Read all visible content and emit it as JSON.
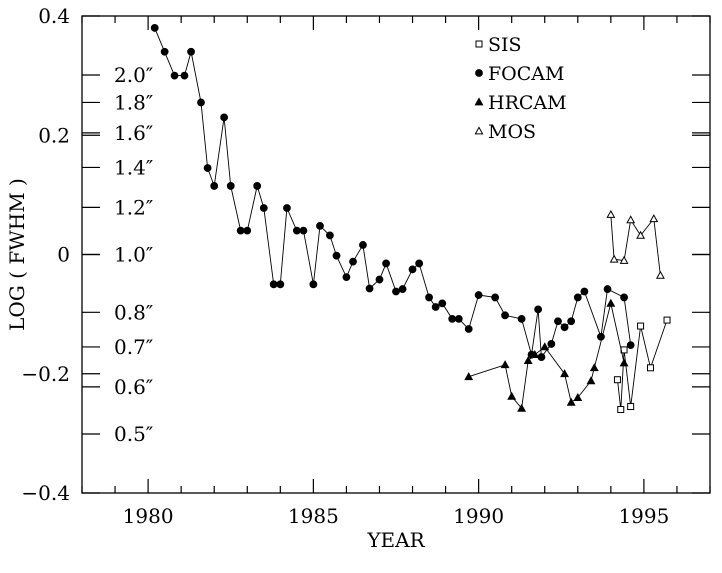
{
  "chart_data": {
    "type": "scatter",
    "xlabel": "YEAR",
    "ylabel": "LOG ( FWHM )",
    "xlim": [
      1978,
      1997
    ],
    "ylim": [
      -0.4,
      0.4
    ],
    "x_ticks": [
      1980,
      1985,
      1990,
      1995
    ],
    "y_ticks": [
      {
        "value": 0.4,
        "label": "0.4"
      },
      {
        "value": 0.2,
        "label": "0.2"
      },
      {
        "value": 0.0,
        "label": "0"
      },
      {
        "value": -0.2,
        "label": "−0.2"
      },
      {
        "value": -0.4,
        "label": "−0.4"
      }
    ],
    "fwhm_labels": [
      {
        "value": 0.301,
        "label": "2.0″"
      },
      {
        "value": 0.255,
        "label": "1.8″"
      },
      {
        "value": 0.204,
        "label": "1.6″"
      },
      {
        "value": 0.146,
        "label": "1.4″"
      },
      {
        "value": 0.079,
        "label": "1.2″"
      },
      {
        "value": 0.0,
        "label": "1.0″"
      },
      {
        "value": -0.097,
        "label": "0.8″"
      },
      {
        "value": -0.155,
        "label": "0.7″"
      },
      {
        "value": -0.222,
        "label": "0.6″"
      },
      {
        "value": -0.301,
        "label": "0.5″"
      }
    ],
    "grid": false,
    "legend_position": "top-right",
    "series": [
      {
        "name": "SIS",
        "marker": "square",
        "points": [
          [
            1994.2,
            -0.21
          ],
          [
            1994.3,
            -0.26
          ],
          [
            1994.4,
            -0.16
          ],
          [
            1994.6,
            -0.255
          ],
          [
            1994.9,
            -0.12
          ],
          [
            1995.2,
            -0.19
          ],
          [
            1995.7,
            -0.11
          ]
        ]
      },
      {
        "name": "FOCAM",
        "marker": "filled-circle",
        "points": [
          [
            1980.2,
            0.38
          ],
          [
            1980.5,
            0.34
          ],
          [
            1980.8,
            0.3
          ],
          [
            1981.1,
            0.3
          ],
          [
            1981.3,
            0.34
          ],
          [
            1981.6,
            0.255
          ],
          [
            1981.8,
            0.145
          ],
          [
            1982.0,
            0.115
          ],
          [
            1982.3,
            0.23
          ],
          [
            1982.5,
            0.115
          ],
          [
            1982.8,
            0.04
          ],
          [
            1983.0,
            0.04
          ],
          [
            1983.3,
            0.115
          ],
          [
            1983.5,
            0.078
          ],
          [
            1983.8,
            -0.05
          ],
          [
            1984.0,
            -0.05
          ],
          [
            1984.2,
            0.078
          ],
          [
            1984.5,
            0.04
          ],
          [
            1984.7,
            0.04
          ],
          [
            1985.0,
            -0.05
          ],
          [
            1985.2,
            0.048
          ],
          [
            1985.5,
            0.032
          ],
          [
            1985.7,
            -0.002
          ],
          [
            1986.0,
            -0.038
          ],
          [
            1986.2,
            -0.012
          ],
          [
            1986.5,
            0.016
          ],
          [
            1986.7,
            -0.057
          ],
          [
            1987.0,
            -0.042
          ],
          [
            1987.2,
            -0.015
          ],
          [
            1987.5,
            -0.062
          ],
          [
            1987.7,
            -0.058
          ],
          [
            1988.0,
            -0.025
          ],
          [
            1988.2,
            -0.015
          ],
          [
            1988.5,
            -0.072
          ],
          [
            1988.7,
            -0.088
          ],
          [
            1988.9,
            -0.082
          ],
          [
            1989.2,
            -0.108
          ],
          [
            1989.4,
            -0.108
          ],
          [
            1989.7,
            -0.125
          ],
          [
            1990.0,
            -0.068
          ],
          [
            1990.5,
            -0.072
          ],
          [
            1990.8,
            -0.102
          ],
          [
            1991.3,
            -0.108
          ],
          [
            1991.6,
            -0.168
          ],
          [
            1991.8,
            -0.092
          ],
          [
            1991.9,
            -0.172
          ],
          [
            1992.2,
            -0.15
          ],
          [
            1992.4,
            -0.112
          ],
          [
            1992.6,
            -0.122
          ],
          [
            1992.8,
            -0.112
          ],
          [
            1993.0,
            -0.072
          ],
          [
            1993.2,
            -0.062
          ],
          [
            1993.7,
            -0.138
          ],
          [
            1993.9,
            -0.058
          ],
          [
            1994.4,
            -0.072
          ],
          [
            1994.6,
            -0.152
          ]
        ]
      },
      {
        "name": "HRCAM",
        "marker": "filled-triangle",
        "points": [
          [
            1989.7,
            -0.205
          ],
          [
            1990.8,
            -0.185
          ],
          [
            1991.0,
            -0.238
          ],
          [
            1991.3,
            -0.258
          ],
          [
            1991.5,
            -0.178
          ],
          [
            1991.7,
            -0.168
          ],
          [
            1992.0,
            -0.155
          ],
          [
            1992.6,
            -0.2
          ],
          [
            1992.8,
            -0.248
          ],
          [
            1993.0,
            -0.24
          ],
          [
            1993.4,
            -0.212
          ],
          [
            1993.5,
            -0.19
          ],
          [
            1994.0,
            -0.082
          ],
          [
            1994.4,
            -0.182
          ]
        ]
      },
      {
        "name": "MOS",
        "marker": "open-triangle",
        "points": [
          [
            1994.0,
            0.067
          ],
          [
            1994.1,
            -0.008
          ],
          [
            1994.4,
            -0.01
          ],
          [
            1994.6,
            0.058
          ],
          [
            1994.9,
            0.032
          ],
          [
            1995.3,
            0.06
          ],
          [
            1995.5,
            -0.035
          ]
        ]
      }
    ]
  }
}
